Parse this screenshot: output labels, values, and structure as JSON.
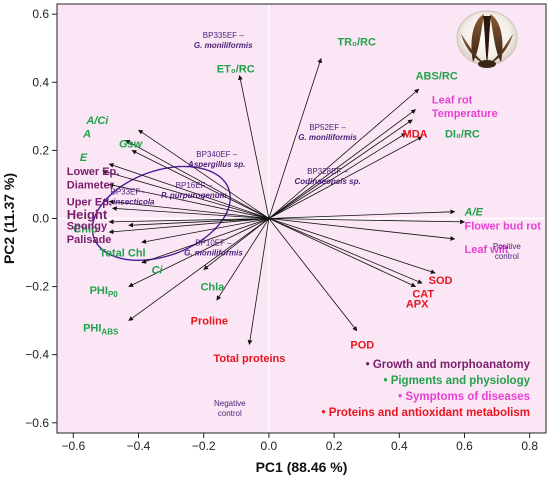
{
  "chart_data": {
    "type": "scatter",
    "xlabel": "PC1 (88.46 %)",
    "ylabel": "PC2 (11.37 %)",
    "xlim": [
      -0.65,
      0.85
    ],
    "ylim": [
      -0.63,
      0.63
    ],
    "xticks": [
      -0.6,
      -0.4,
      -0.2,
      0.0,
      0.2,
      0.4,
      0.6,
      0.8
    ],
    "yticks": [
      -0.6,
      -0.4,
      -0.2,
      0.0,
      0.2,
      0.4,
      0.6
    ],
    "xtick_labels": [
      "−0.6",
      "−0.4",
      "−0.2",
      "0.0",
      "0.2",
      "0.4",
      "0.6",
      "0.8"
    ],
    "ytick_labels": [
      "−0.6",
      "−0.4",
      "−0.2",
      "0.0",
      "0.2",
      "0.4",
      "0.6"
    ],
    "plot_background": "#fae6f4",
    "colors": {
      "growth": "#7a1f6e",
      "pigments": "#22a24a",
      "symptoms": "#e83fd4",
      "proteins": "#e8141e",
      "treatment": "#4b1f7a",
      "ellipse": "#4b1f9a"
    },
    "variables": [
      {
        "label": "ET₀/RC",
        "group": "pigments",
        "italic": false,
        "x": -0.09,
        "y": 0.42,
        "lx": -0.16,
        "ly": 0.44
      },
      {
        "label": "TR₀/RC",
        "group": "pigments",
        "italic": false,
        "x": 0.16,
        "y": 0.47,
        "lx": 0.21,
        "ly": 0.52
      },
      {
        "label": "ABS/RC",
        "group": "pigments",
        "italic": false,
        "x": 0.46,
        "y": 0.38,
        "lx": 0.45,
        "ly": 0.42
      },
      {
        "label": "DI₀/RC",
        "group": "pigments",
        "italic": false,
        "x": 0.47,
        "y": 0.24,
        "lx": 0.54,
        "ly": 0.25
      },
      {
        "label": "A/Ci",
        "group": "pigments",
        "italic": true,
        "x": -0.4,
        "y": 0.26,
        "lx": -0.56,
        "ly": 0.29
      },
      {
        "label": "A",
        "group": "pigments",
        "italic": true,
        "x": -0.44,
        "y": 0.23,
        "lx": -0.57,
        "ly": 0.25
      },
      {
        "label": "Gsw",
        "group": "pigments",
        "italic": true,
        "x": -0.42,
        "y": 0.2,
        "lx": -0.46,
        "ly": 0.22
      },
      {
        "label": "E",
        "group": "pigments",
        "italic": true,
        "x": -0.49,
        "y": 0.16,
        "lx": -0.58,
        "ly": 0.18
      },
      {
        "label": "Chlb",
        "group": "pigments",
        "italic": false,
        "x": -0.43,
        "y": -0.02,
        "lx": -0.6,
        "ly": -0.03
      },
      {
        "label": "Total Chl",
        "group": "pigments",
        "italic": false,
        "x": -0.39,
        "y": -0.07,
        "lx": -0.52,
        "ly": -0.1
      },
      {
        "label": "Ci",
        "group": "pigments",
        "italic": true,
        "x": -0.39,
        "y": -0.13,
        "lx": -0.36,
        "ly": -0.15
      },
      {
        "label": "PHIP0",
        "group": "pigments",
        "italic": false,
        "x": -0.43,
        "y": -0.2,
        "lx": -0.55,
        "ly": -0.21
      },
      {
        "label": "PHIABS",
        "group": "pigments",
        "italic": false,
        "x": -0.43,
        "y": -0.3,
        "lx": -0.57,
        "ly": -0.32
      },
      {
        "label": "Chla",
        "group": "pigments",
        "italic": false,
        "x": -0.2,
        "y": -0.15,
        "lx": -0.21,
        "ly": -0.2
      },
      {
        "label": "A/E",
        "group": "pigments",
        "italic": true,
        "x": 0.57,
        "y": 0.02,
        "lx": 0.6,
        "ly": 0.02
      },
      {
        "label": "Lower Ep.",
        "group": "growth",
        "italic": false,
        "x": -0.51,
        "y": 0.14,
        "lx": -0.62,
        "ly": 0.14
      },
      {
        "label": "Diameter",
        "group": "growth",
        "italic": false,
        "x": -0.49,
        "y": 0.1,
        "lx": -0.62,
        "ly": 0.1
      },
      {
        "label": "Uper Ep.",
        "group": "growth",
        "italic": false,
        "x": -0.49,
        "y": 0.05,
        "lx": -0.62,
        "ly": 0.05
      },
      {
        "label": "Height",
        "group": "growth",
        "italic": false,
        "big": true,
        "x": -0.48,
        "y": 0.03,
        "lx": -0.62,
        "ly": 0.01
      },
      {
        "label": "Spongy",
        "group": "growth",
        "italic": false,
        "x": -0.49,
        "y": -0.01,
        "lx": -0.62,
        "ly": -0.02
      },
      {
        "label": "Palisade",
        "group": "growth",
        "italic": false,
        "x": -0.49,
        "y": -0.04,
        "lx": -0.62,
        "ly": -0.06
      },
      {
        "label": "Leaf rot",
        "group": "symptoms",
        "italic": false,
        "x": 0.45,
        "y": 0.32,
        "lx": 0.5,
        "ly": 0.35
      },
      {
        "label": "Temperature",
        "group": "symptoms",
        "italic": false,
        "x": 0.44,
        "y": 0.29,
        "lx": 0.5,
        "ly": 0.31
      },
      {
        "label": "Flower bud rot",
        "group": "symptoms",
        "italic": false,
        "x": 0.6,
        "y": -0.01,
        "lx": 0.6,
        "ly": -0.02
      },
      {
        "label": "Leaf wilt",
        "group": "symptoms",
        "italic": false,
        "x": 0.57,
        "y": -0.06,
        "lx": 0.6,
        "ly": -0.09
      },
      {
        "label": "MDA",
        "group": "proteins",
        "italic": false,
        "x": 0.42,
        "y": 0.25,
        "lx": 0.41,
        "ly": 0.25
      },
      {
        "label": "SOD",
        "group": "proteins",
        "italic": false,
        "x": 0.51,
        "y": -0.16,
        "lx": 0.49,
        "ly": -0.18
      },
      {
        "label": "CAT",
        "group": "proteins",
        "italic": false,
        "x": 0.47,
        "y": -0.19,
        "lx": 0.44,
        "ly": -0.22
      },
      {
        "label": "APX",
        "group": "proteins",
        "italic": false,
        "x": 0.45,
        "y": -0.2,
        "lx": 0.42,
        "ly": -0.25
      },
      {
        "label": "POD",
        "group": "proteins",
        "italic": false,
        "x": 0.27,
        "y": -0.33,
        "lx": 0.25,
        "ly": -0.37
      },
      {
        "label": "Proline",
        "group": "proteins",
        "italic": false,
        "x": -0.16,
        "y": -0.24,
        "lx": -0.24,
        "ly": -0.3
      },
      {
        "label": "Total proteins",
        "group": "proteins",
        "italic": false,
        "x": -0.06,
        "y": -0.37,
        "lx": -0.17,
        "ly": -0.41
      }
    ],
    "treatments": [
      {
        "line1": "BP335EF –",
        "line2": "G. moniliformis",
        "x": -0.14,
        "y": 0.53
      },
      {
        "line1": "BP340EF –",
        "line2": "Aspergillus sp.",
        "x": -0.16,
        "y": 0.18
      },
      {
        "line1": "BP52EF –",
        "line2": "G. moniliformis",
        "x": 0.18,
        "y": 0.26
      },
      {
        "line1": "BP328EF –",
        "line2": "Codinaeopsis sp.",
        "x": 0.18,
        "y": 0.13
      },
      {
        "line1": "BP33EF –",
        "line2": "H. insecticola",
        "x": -0.43,
        "y": 0.07
      },
      {
        "line1": "BP16EF –",
        "line2": "P. purpurogenum",
        "x": -0.23,
        "y": 0.09
      },
      {
        "line1": "BP10EF –",
        "line2": "G. moniliformis",
        "x": -0.17,
        "y": -0.08
      }
    ],
    "controls": [
      {
        "line1": "Positive",
        "line2": "control",
        "x": 0.73,
        "y": -0.09
      },
      {
        "line1": "Negative",
        "line2": "control",
        "x": -0.12,
        "y": -0.55
      }
    ],
    "ellipse": {
      "cx": -0.33,
      "cy": 0.015,
      "rx": 0.22,
      "ry": 0.125,
      "angle_deg": -20
    },
    "legend": [
      {
        "label": "Growth and morphoanatomy",
        "group": "growth"
      },
      {
        "label": "Pigments and physiology",
        "group": "pigments"
      },
      {
        "label": "Symptoms of diseases",
        "group": "symptoms"
      },
      {
        "label": "Proteins and antioxidant metabolism",
        "group": "proteins"
      }
    ]
  }
}
